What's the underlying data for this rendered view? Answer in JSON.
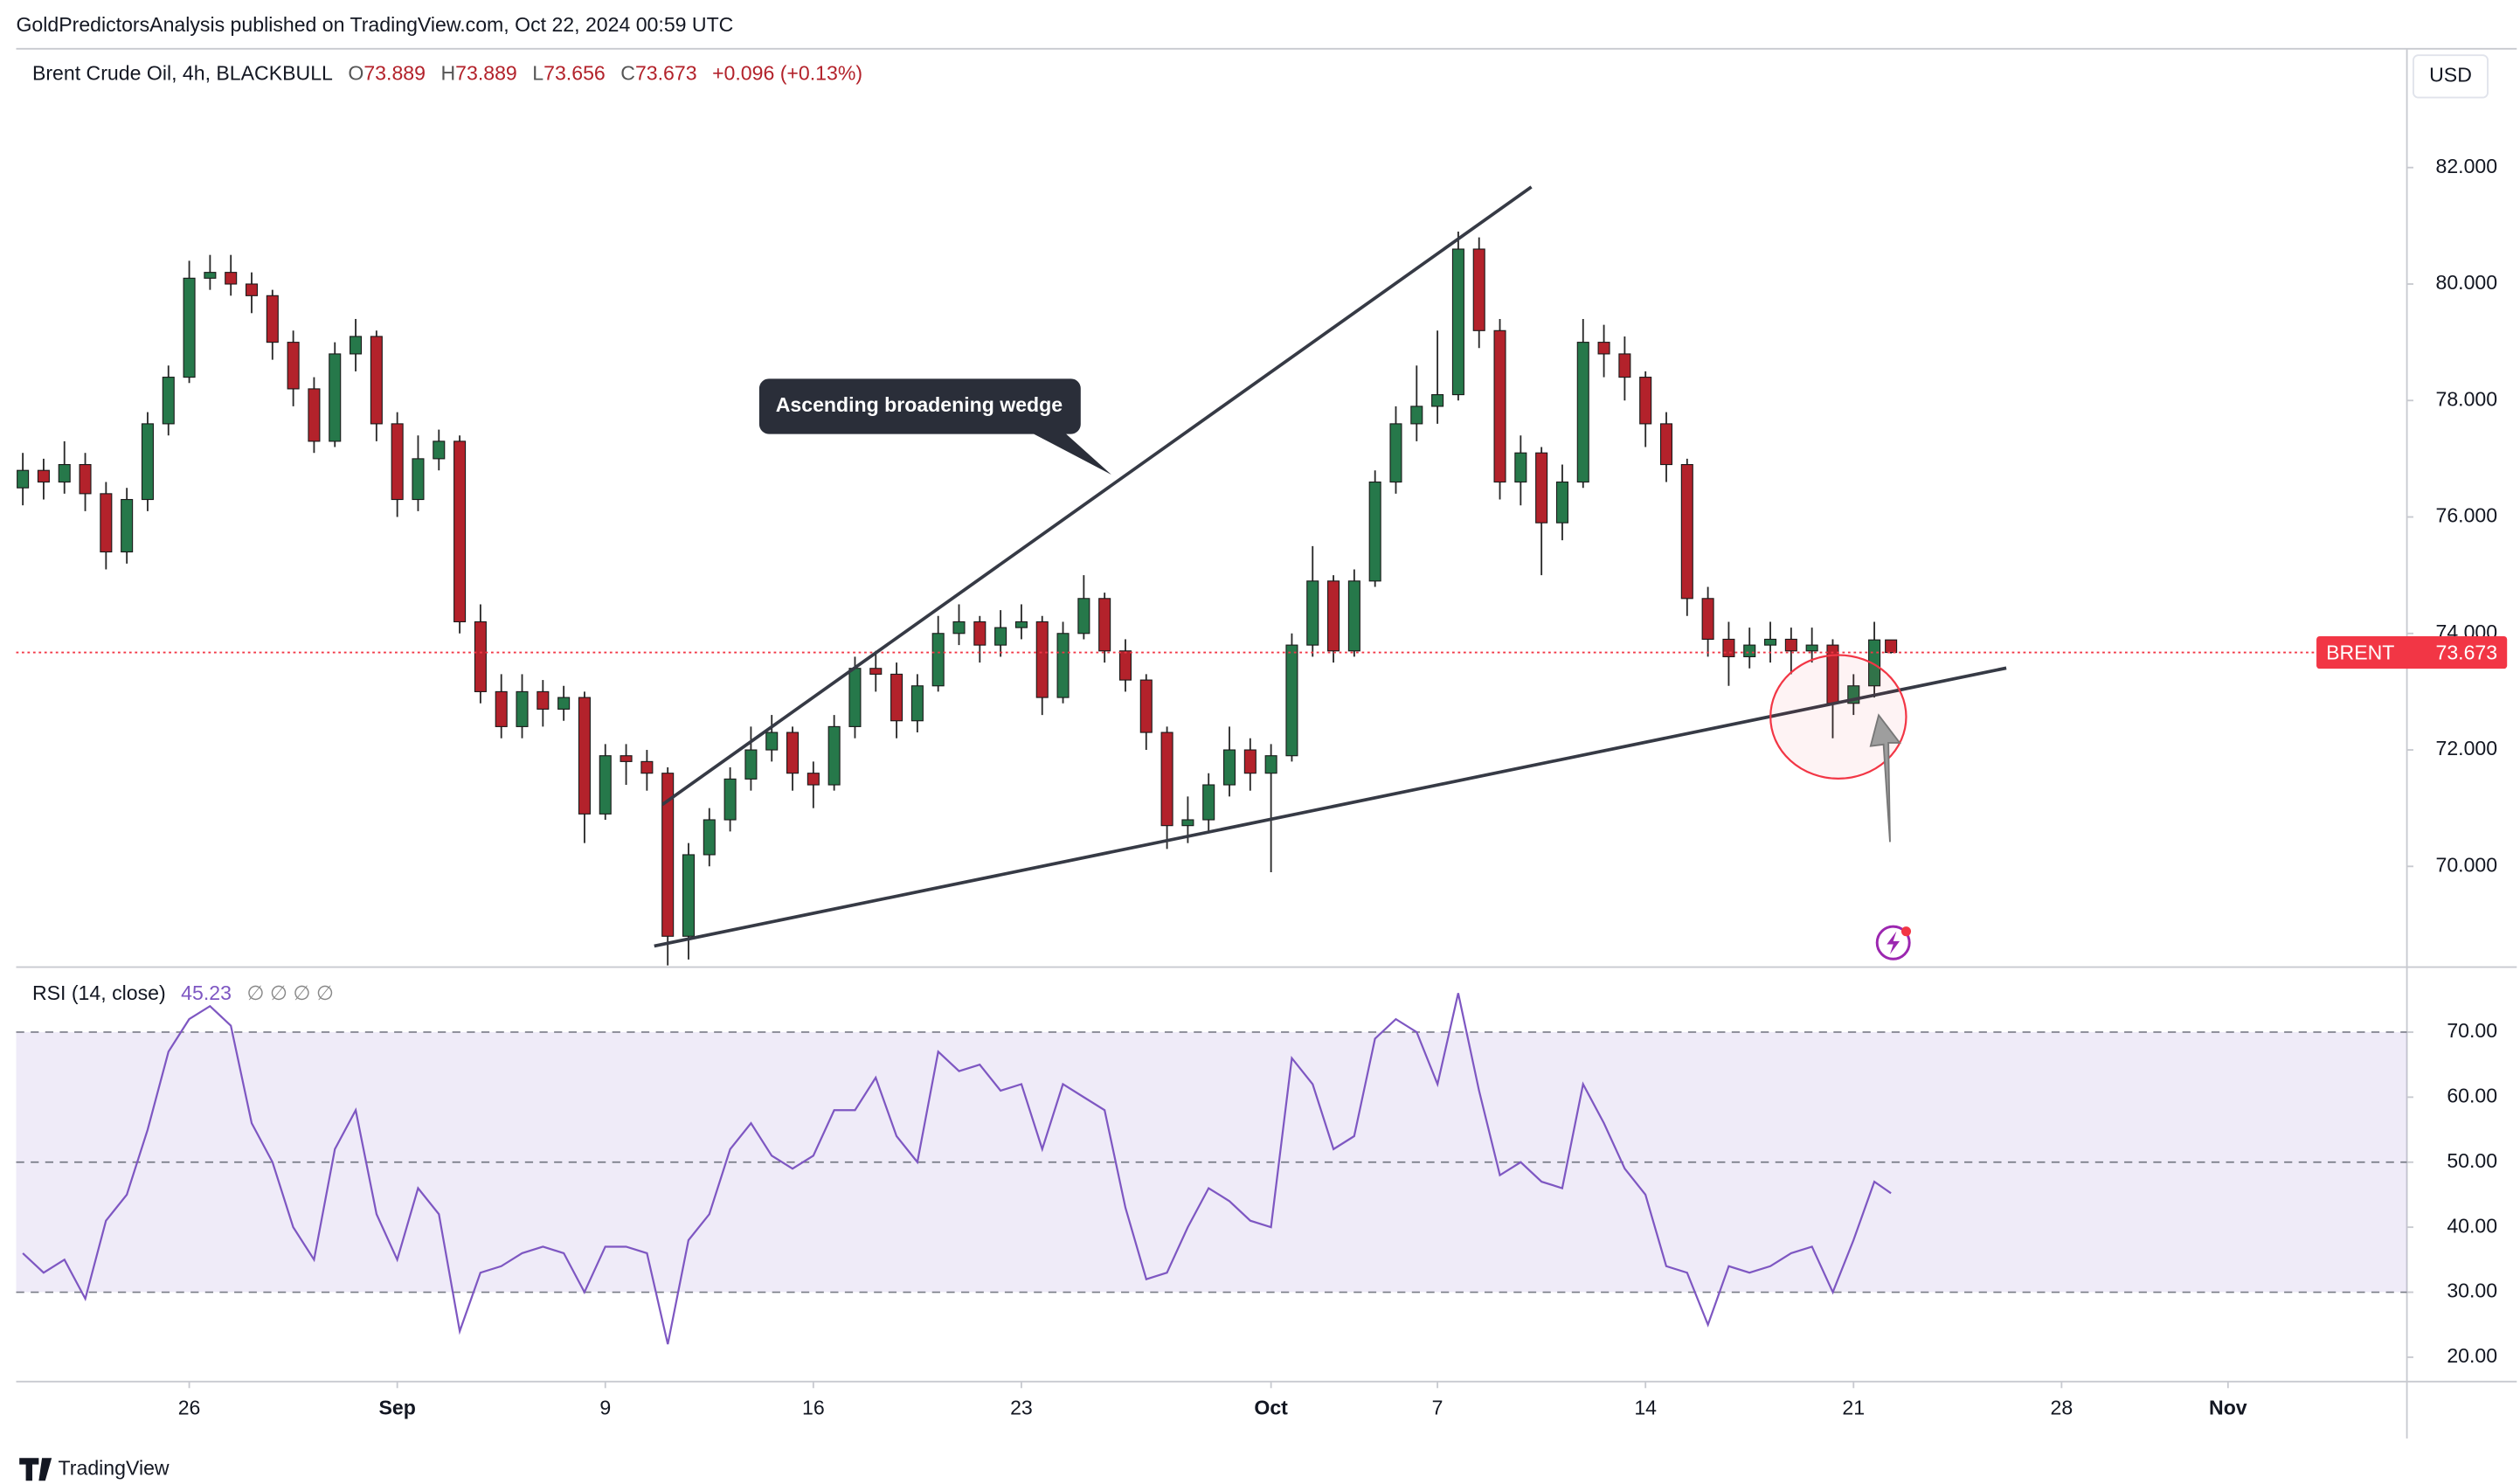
{
  "header": {
    "text": "GoldPredictorsAnalysis published on TradingView.com, Oct 22, 2024 00:59 UTC"
  },
  "footer": {
    "brand": "TradingView"
  },
  "chart_data": [
    {
      "type": "candlestick",
      "title": "Brent Crude Oil, 4h, BLACKBULL",
      "ohlc_labels": [
        "O",
        "H",
        "L",
        "C"
      ],
      "change_label": "+0.096 (+0.13%)",
      "currency": "USD",
      "symbol_tag": "BRENT",
      "annotation": "Ascending broadening wedge",
      "up_color": "#26784a",
      "down_color": "#b3222b",
      "last_price_color": "#f23645",
      "xlim": [
        -4.16,
        53.3
      ],
      "ylim": [
        68.27,
        84.04
      ],
      "yticks": [
        {
          "value": 70,
          "label": "70.000"
        },
        {
          "value": 72,
          "label": "72.000"
        },
        {
          "value": 74,
          "label": "74.000"
        },
        {
          "value": 76,
          "label": "76.000"
        },
        {
          "value": 78,
          "label": "78.000"
        },
        {
          "value": 80,
          "label": "80.000"
        },
        {
          "value": 82,
          "label": "82.000"
        }
      ],
      "x": [
        -4,
        -3.5,
        -3,
        -2.5,
        -2,
        -1.5,
        -1,
        -0.5,
        0,
        0.5,
        1,
        1.5,
        2,
        2.5,
        3,
        3.5,
        4,
        4.5,
        5,
        5.5,
        6,
        6.5,
        7,
        7.5,
        8,
        8.5,
        9,
        9.5,
        10,
        10.5,
        11,
        11.5,
        12,
        12.5,
        13,
        13.5,
        14,
        14.5,
        15,
        15.5,
        16,
        16.5,
        17,
        17.5,
        18,
        18.5,
        19,
        19.5,
        20,
        20.5,
        21,
        21.5,
        22,
        22.5,
        23,
        23.5,
        24,
        24.5,
        25,
        25.5,
        26,
        26.5,
        27,
        27.5,
        28,
        28.5,
        29,
        29.5,
        30,
        30.5,
        31,
        31.5,
        32,
        32.5,
        33,
        33.5,
        34,
        34.5,
        35,
        35.5,
        36,
        36.5,
        37,
        37.5,
        38,
        38.5,
        39,
        39.5,
        40,
        40.5,
        40.9
      ],
      "open": [
        76.5,
        76.8,
        76.6,
        76.9,
        76.4,
        75.4,
        76.3,
        77.6,
        78.4,
        80.1,
        80.2,
        80.0,
        79.8,
        79.0,
        78.2,
        77.3,
        78.8,
        79.1,
        77.6,
        76.3,
        77.0,
        77.3,
        74.2,
        73.0,
        72.4,
        73.0,
        72.7,
        72.9,
        70.9,
        71.9,
        71.8,
        71.6,
        68.8,
        70.2,
        70.8,
        71.5,
        72.0,
        72.3,
        71.6,
        71.4,
        72.4,
        73.4,
        73.3,
        72.5,
        73.1,
        74.0,
        74.2,
        73.8,
        74.1,
        74.2,
        72.9,
        74.0,
        74.6,
        73.7,
        73.2,
        72.3,
        70.7,
        70.8,
        71.4,
        72.0,
        71.6,
        71.9,
        73.8,
        74.9,
        73.7,
        74.9,
        76.6,
        77.6,
        77.9,
        78.1,
        80.6,
        79.2,
        76.6,
        77.1,
        75.9,
        76.6,
        79.0,
        78.8,
        78.4,
        77.6,
        76.9,
        74.6,
        73.9,
        73.6,
        73.8,
        73.9,
        73.7,
        73.8,
        72.8,
        73.1,
        73.889
      ],
      "high": [
        77.1,
        77.0,
        77.3,
        77.1,
        76.6,
        76.5,
        77.8,
        78.6,
        80.4,
        80.5,
        80.5,
        80.2,
        79.9,
        79.2,
        78.4,
        79.0,
        79.4,
        79.2,
        77.8,
        77.4,
        77.5,
        77.4,
        74.5,
        73.3,
        73.3,
        73.2,
        73.1,
        73.0,
        72.1,
        72.1,
        72.0,
        71.7,
        70.4,
        71.0,
        71.7,
        72.4,
        72.6,
        72.4,
        71.8,
        72.6,
        73.6,
        73.7,
        73.5,
        73.3,
        74.3,
        74.5,
        74.3,
        74.4,
        74.5,
        74.3,
        74.2,
        75.0,
        74.7,
        73.9,
        73.3,
        72.4,
        71.2,
        71.6,
        72.4,
        72.2,
        72.1,
        74.0,
        75.5,
        75.0,
        75.1,
        76.8,
        77.9,
        78.6,
        79.2,
        80.9,
        80.8,
        79.4,
        77.4,
        77.2,
        76.9,
        79.4,
        79.3,
        79.1,
        78.5,
        77.8,
        77.0,
        74.8,
        74.2,
        74.1,
        74.2,
        74.1,
        74.1,
        73.9,
        73.3,
        74.2,
        73.889
      ],
      "low": [
        76.2,
        76.3,
        76.4,
        76.1,
        75.1,
        75.2,
        76.1,
        77.4,
        78.3,
        79.9,
        79.8,
        79.5,
        78.7,
        77.9,
        77.1,
        77.2,
        78.5,
        77.3,
        76.0,
        76.1,
        76.8,
        74.0,
        72.8,
        72.2,
        72.2,
        72.4,
        72.5,
        70.4,
        70.8,
        71.4,
        71.3,
        68.3,
        68.4,
        70.0,
        70.6,
        71.3,
        71.8,
        71.3,
        71.0,
        71.3,
        72.2,
        73.0,
        72.2,
        72.3,
        73.0,
        73.8,
        73.5,
        73.6,
        73.9,
        72.6,
        72.8,
        73.9,
        73.5,
        73.0,
        72.0,
        70.3,
        70.4,
        70.6,
        71.2,
        71.3,
        69.9,
        71.8,
        73.6,
        73.5,
        73.6,
        74.8,
        76.4,
        77.3,
        77.6,
        78.0,
        78.9,
        76.3,
        76.2,
        75.0,
        75.6,
        76.5,
        78.4,
        78.0,
        77.2,
        76.6,
        74.3,
        73.6,
        73.1,
        73.4,
        73.5,
        73.3,
        73.5,
        72.2,
        72.6,
        72.9,
        73.656
      ],
      "close": [
        76.8,
        76.6,
        76.9,
        76.4,
        75.4,
        76.3,
        77.6,
        78.4,
        80.1,
        80.2,
        80.0,
        79.8,
        79.0,
        78.2,
        77.3,
        78.8,
        79.1,
        77.6,
        76.3,
        77.0,
        77.3,
        74.2,
        73.0,
        72.4,
        73.0,
        72.7,
        72.9,
        70.9,
        71.9,
        71.8,
        71.6,
        68.8,
        70.2,
        70.8,
        71.5,
        72.0,
        72.3,
        71.6,
        71.4,
        72.4,
        73.4,
        73.3,
        72.5,
        73.1,
        74.0,
        74.2,
        73.8,
        74.1,
        74.2,
        72.9,
        74.0,
        74.6,
        73.7,
        73.2,
        72.3,
        70.7,
        70.8,
        71.4,
        72.0,
        71.6,
        71.9,
        73.8,
        74.9,
        73.7,
        74.9,
        76.6,
        77.6,
        77.9,
        78.1,
        80.6,
        79.2,
        76.6,
        77.1,
        75.9,
        76.6,
        79.0,
        78.8,
        78.4,
        77.6,
        76.9,
        74.6,
        73.9,
        73.6,
        73.8,
        73.9,
        73.7,
        73.8,
        72.8,
        73.1,
        73.889,
        73.673
      ]
    },
    {
      "type": "line",
      "inputs": "∅ ∅ ∅ ∅",
      "band_color": "rgba(126,87,194,0.12)",
      "levels": [
        30,
        50,
        70
      ],
      "xlim": [
        -4.16,
        53.3
      ],
      "ylim": [
        16.25,
        80
      ],
      "yticks": [
        {
          "value": 20,
          "label": "20.00"
        },
        {
          "value": 30,
          "label": "30.00"
        },
        {
          "value": 40,
          "label": "40.00"
        },
        {
          "value": 50,
          "label": "50.00"
        },
        {
          "value": 60,
          "label": "60.00"
        },
        {
          "value": 70,
          "label": "70.00"
        }
      ],
      "xticks": [
        {
          "value": 0,
          "label": "26"
        },
        {
          "value": 5,
          "label": "Sep"
        },
        {
          "value": 10,
          "label": "9"
        },
        {
          "value": 15,
          "label": "16"
        },
        {
          "value": 20,
          "label": "23"
        },
        {
          "value": 26,
          "label": "Oct"
        },
        {
          "value": 30,
          "label": "7"
        },
        {
          "value": 35,
          "label": "14"
        },
        {
          "value": 40,
          "label": "21"
        },
        {
          "value": 45,
          "label": "28"
        },
        {
          "value": 49,
          "label": "Nov"
        }
      ],
      "x": [
        -4,
        -3.5,
        -3,
        -2.5,
        -2,
        -1.5,
        -1,
        -0.5,
        0,
        0.5,
        1,
        1.5,
        2,
        2.5,
        3,
        3.5,
        4,
        4.5,
        5,
        5.5,
        6,
        6.5,
        7,
        7.5,
        8,
        8.5,
        9,
        9.5,
        10,
        10.5,
        11,
        11.5,
        12,
        12.5,
        13,
        13.5,
        14,
        14.5,
        15,
        15.5,
        16,
        16.5,
        17,
        17.5,
        18,
        18.5,
        19,
        19.5,
        20,
        20.5,
        21,
        21.5,
        22,
        22.5,
        23,
        23.5,
        24,
        24.5,
        25,
        25.5,
        26,
        26.5,
        27,
        27.5,
        28,
        28.5,
        29,
        29.5,
        30,
        30.5,
        31,
        31.5,
        32,
        32.5,
        33,
        33.5,
        34,
        34.5,
        35,
        35.5,
        36,
        36.5,
        37,
        37.5,
        38,
        38.5,
        39,
        39.5,
        40,
        40.5,
        40.9
      ],
      "series": [
        {
          "name": "RSI (14, close)",
          "color": "#7e57c2",
          "values": [
            36,
            33,
            35,
            29,
            41,
            45,
            55,
            67,
            72,
            74,
            71,
            56,
            50,
            40,
            35,
            52,
            58,
            42,
            35,
            46,
            42,
            24,
            33,
            34,
            36,
            37,
            36,
            30,
            37,
            37,
            36,
            22,
            38,
            42,
            52,
            56,
            51,
            49,
            51,
            58,
            58,
            63,
            54,
            50,
            67,
            64,
            65,
            61,
            62,
            52,
            62,
            60,
            58,
            43,
            32,
            33,
            40,
            46,
            44,
            41,
            40,
            66,
            62,
            52,
            54,
            69,
            72,
            70,
            62,
            76,
            61,
            48,
            50,
            47,
            46,
            62,
            56,
            49,
            45,
            34,
            33,
            25,
            34,
            33,
            34,
            36,
            37,
            30,
            38,
            47,
            45.23
          ]
        }
      ]
    }
  ]
}
